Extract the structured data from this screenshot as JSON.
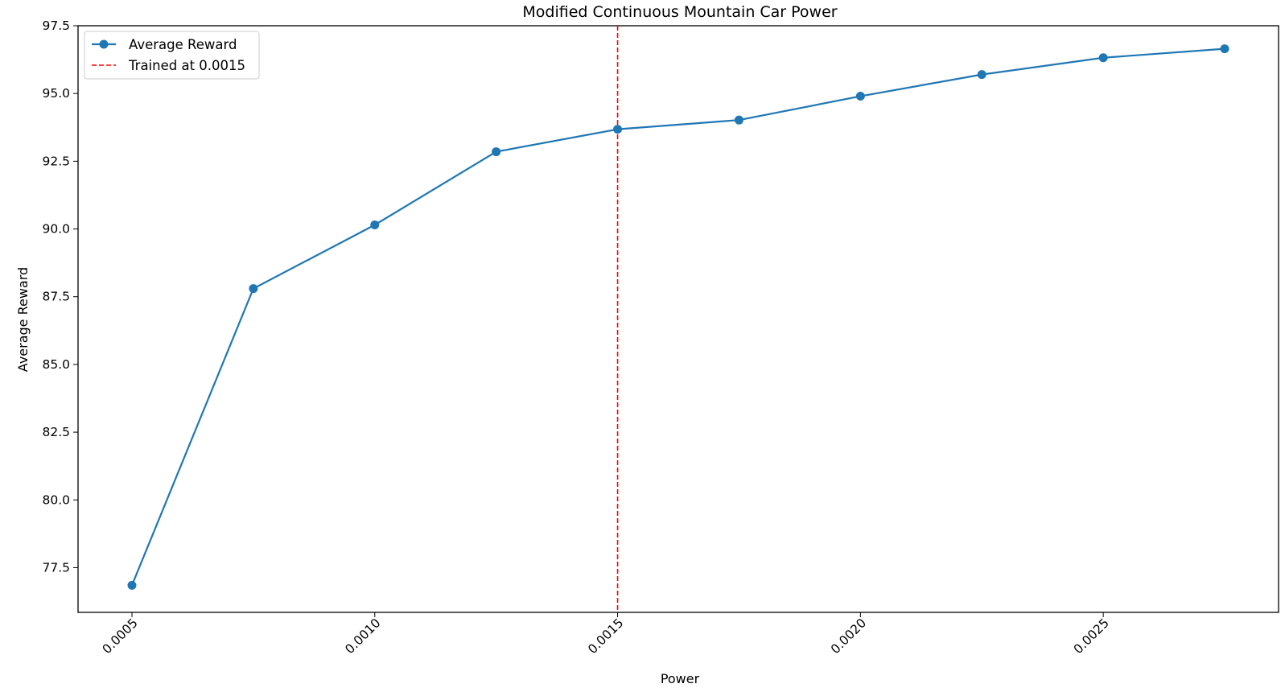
{
  "chart_data": {
    "type": "line",
    "title": "Modified Continuous Mountain Car Power",
    "xlabel": "Power",
    "ylabel": "Average Reward",
    "xlim": [
      0.000389,
      0.002861
    ],
    "ylim": [
      75.85,
      97.5
    ],
    "x_ticks": [
      {
        "value": 0.0005,
        "label": "0.0005"
      },
      {
        "value": 0.001,
        "label": "0.0010"
      },
      {
        "value": 0.0015,
        "label": "0.0015"
      },
      {
        "value": 0.002,
        "label": "0.0020"
      },
      {
        "value": 0.0025,
        "label": "0.0025"
      }
    ],
    "y_ticks": [
      {
        "value": 77.5,
        "label": "77.5"
      },
      {
        "value": 80.0,
        "label": "80.0"
      },
      {
        "value": 82.5,
        "label": "82.5"
      },
      {
        "value": 85.0,
        "label": "85.0"
      },
      {
        "value": 87.5,
        "label": "87.5"
      },
      {
        "value": 90.0,
        "label": "90.0"
      },
      {
        "value": 92.5,
        "label": "92.5"
      },
      {
        "value": 95.0,
        "label": "95.0"
      },
      {
        "value": 97.5,
        "label": "97.5"
      }
    ],
    "x_tick_rotation": 45,
    "grid": false,
    "legend_position": "top-left",
    "series": [
      {
        "name": "Average Reward",
        "color": "#1f77b4",
        "marker": "circle",
        "x": [
          0.0005,
          0.00075,
          0.001,
          0.00125,
          0.0015,
          0.00175,
          0.002,
          0.00225,
          0.0025,
          0.00275
        ],
        "y": [
          76.85,
          87.8,
          90.15,
          92.85,
          93.68,
          94.02,
          94.9,
          95.7,
          96.32,
          96.65
        ]
      }
    ],
    "reference_lines": [
      {
        "name": "Trained at 0.0015",
        "orientation": "vertical",
        "x": 0.0015,
        "color": "#ff0000",
        "style": "dashed"
      }
    ]
  }
}
